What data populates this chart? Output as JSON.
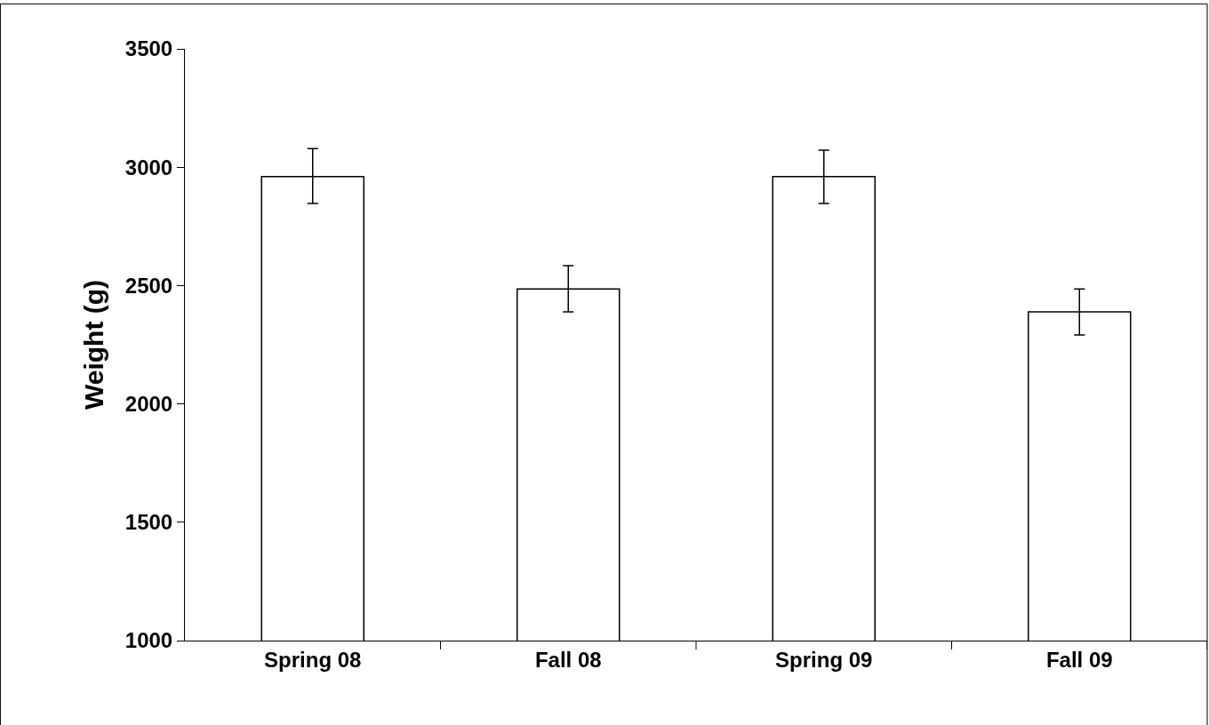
{
  "chart_data": {
    "type": "bar",
    "ylabel": "Weight (g)",
    "categories": [
      "Spring 08",
      "Fall 08",
      "Spring 09",
      "Fall 09"
    ],
    "values": [
      2960,
      2486,
      2960,
      2389
    ],
    "errors": [
      [
        2847,
        3079
      ],
      [
        2389,
        2584
      ],
      [
        2847,
        3072
      ],
      [
        2291,
        2486
      ]
    ],
    "color": "#ffffff",
    "ylim": [
      1000,
      3500
    ],
    "yticks": [
      1000,
      1500,
      2000,
      2500,
      3000,
      3500
    ]
  }
}
